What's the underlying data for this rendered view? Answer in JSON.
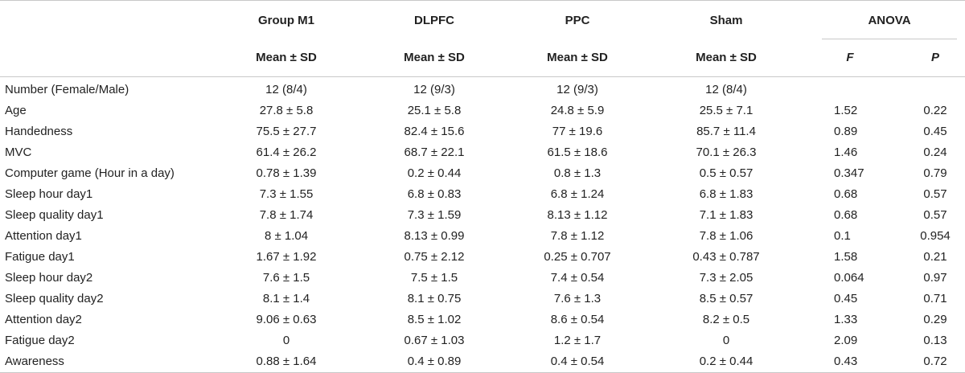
{
  "table": {
    "group_headers": {
      "m1": "Group M1",
      "dlpfc": "DLPFC",
      "ppc": "PPC",
      "sham": "Sham",
      "anova": "ANOVA"
    },
    "sub_headers": {
      "m1": "Mean ± SD",
      "dlpfc": "Mean ± SD",
      "ppc": "Mean ± SD",
      "sham": "Mean ± SD",
      "f": "F",
      "p": "P"
    },
    "rows": [
      {
        "label": "Number (Female/Male)",
        "m1": "12 (8/4)",
        "dlpfc": "12 (9/3)",
        "ppc": "12 (9/3)",
        "sham": "12 (8/4)",
        "f": "",
        "p": ""
      },
      {
        "label": "Age",
        "m1": "27.8 ± 5.8",
        "dlpfc": "25.1 ± 5.8",
        "ppc": "24.8 ± 5.9",
        "sham": "25.5 ± 7.1",
        "f": "1.52",
        "p": "0.22"
      },
      {
        "label": "Handedness",
        "m1": "75.5 ± 27.7",
        "dlpfc": "82.4 ± 15.6",
        "ppc": "77 ± 19.6",
        "sham": "85.7 ± 11.4",
        "f": "0.89",
        "p": "0.45"
      },
      {
        "label": "MVC",
        "m1": "61.4 ± 26.2",
        "dlpfc": "68.7 ± 22.1",
        "ppc": "61.5 ± 18.6",
        "sham": "70.1 ± 26.3",
        "f": "1.46",
        "p": "0.24"
      },
      {
        "label": "Computer game (Hour in a day)",
        "m1": "0.78 ± 1.39",
        "dlpfc": "0.2 ± 0.44",
        "ppc": "0.8 ± 1.3",
        "sham": "0.5 ± 0.57",
        "f": "0.347",
        "p": "0.79"
      },
      {
        "label": "Sleep hour day1",
        "m1": "7.3 ± 1.55",
        "dlpfc": "6.8 ± 0.83",
        "ppc": "6.8 ± 1.24",
        "sham": "6.8 ± 1.83",
        "f": "0.68",
        "p": "0.57"
      },
      {
        "label": "Sleep quality day1",
        "m1": "7.8 ± 1.74",
        "dlpfc": "7.3 ± 1.59",
        "ppc": "8.13 ± 1.12",
        "sham": "7.1 ± 1.83",
        "f": "0.68",
        "p": "0.57"
      },
      {
        "label": "Attention day1",
        "m1": "8 ± 1.04",
        "dlpfc": "8.13 ± 0.99",
        "ppc": "7.8 ± 1.12",
        "sham": "7.8 ± 1.06",
        "f": "0.1",
        "p": "0.954"
      },
      {
        "label": "Fatigue day1",
        "m1": "1.67 ± 1.92",
        "dlpfc": "0.75 ± 2.12",
        "ppc": "0.25 ± 0.707",
        "sham": "0.43 ± 0.787",
        "f": "1.58",
        "p": "0.21"
      },
      {
        "label": "Sleep hour day2",
        "m1": "7.6 ± 1.5",
        "dlpfc": "7.5 ± 1.5",
        "ppc": "7.4 ± 0.54",
        "sham": "7.3 ± 2.05",
        "f": "0.064",
        "p": "0.97"
      },
      {
        "label": "Sleep quality day2",
        "m1": "8.1 ± 1.4",
        "dlpfc": "8.1 ± 0.75",
        "ppc": "7.6 ± 1.3",
        "sham": "8.5 ± 0.57",
        "f": "0.45",
        "p": "0.71"
      },
      {
        "label": "Attention day2",
        "m1": "9.06 ± 0.63",
        "dlpfc": "8.5 ± 1.02",
        "ppc": "8.6 ± 0.54",
        "sham": "8.2 ± 0.5",
        "f": "1.33",
        "p": "0.29"
      },
      {
        "label": "Fatigue day2",
        "m1": "0",
        "dlpfc": "0.67 ± 1.03",
        "ppc": "1.2 ± 1.7",
        "sham": "0",
        "f": "2.09",
        "p": "0.13"
      },
      {
        "label": "Awareness",
        "m1": "0.88 ± 1.64",
        "dlpfc": "0.4 ± 0.89",
        "ppc": "0.4 ± 0.54",
        "sham": "0.2 ± 0.44",
        "f": "0.43",
        "p": "0.72"
      }
    ]
  }
}
